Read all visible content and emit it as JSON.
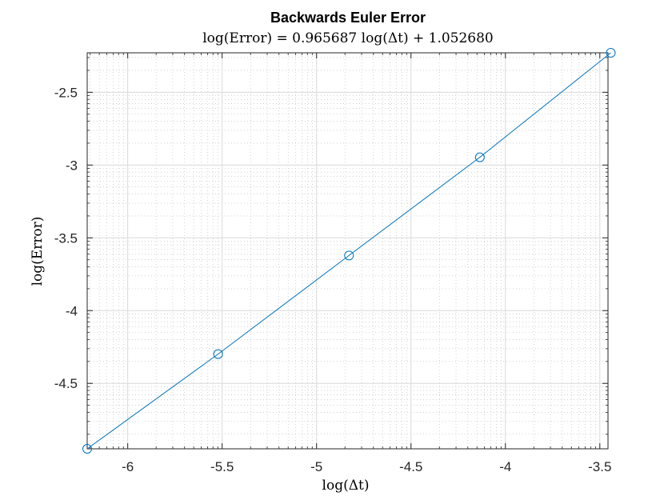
{
  "chart_data": {
    "type": "line",
    "title": "Backwards Euler Error",
    "subtitle": "log(Error) = 0.965687 log(Δt) + 1.052680",
    "xlabel": "log(Δt)",
    "ylabel": "log(Error)",
    "xscale": "log",
    "yscale": "log",
    "xlim": [
      -6.2146,
      -3.4567
    ],
    "ylim": [
      -4.9495,
      -2.2287
    ],
    "xticks": [
      -6,
      -5.5,
      -5,
      -4.5,
      -4,
      -3.5
    ],
    "xtick_labels": [
      "-6",
      "-5.5",
      "-5",
      "-4.5",
      "-4",
      "-3.5"
    ],
    "yticks": [
      -4.5,
      -4,
      -3.5,
      -3,
      -2.5
    ],
    "ytick_labels": [
      "-4.5",
      "-4",
      "-3.5",
      "-3",
      "-2.5"
    ],
    "grid": true,
    "minor_grid": true,
    "series": [
      {
        "color": "#0072BD",
        "marker": "circle",
        "x": [
          -6.2146,
          -5.5215,
          -4.8283,
          -4.1352,
          -3.442
        ],
        "y": [
          -4.9495,
          -4.2987,
          -3.6214,
          -2.9466,
          -2.2287
        ]
      }
    ]
  }
}
